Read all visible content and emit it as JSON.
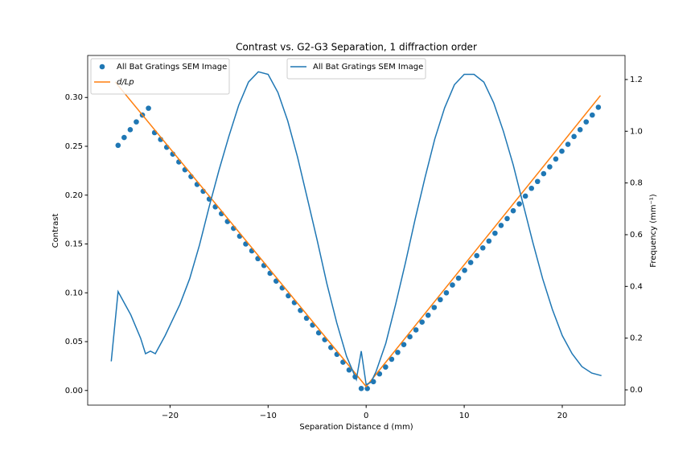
{
  "chart_data": {
    "type": "combo",
    "title": "Contrast vs. G2-G3 Separation, 1 diffraction order",
    "x_label": "Separation Distance d (mm)",
    "y_label": "Contrast",
    "y2_label": "Frequency (mm⁻¹)",
    "xlim": [
      -28.4,
      26.4
    ],
    "ylim": [
      -0.015,
      0.343
    ],
    "y2lim": [
      -0.059,
      1.293
    ],
    "xticks": [
      {
        "value": -20,
        "label": "−20"
      },
      {
        "value": -10,
        "label": "−10"
      },
      0,
      10,
      20
    ],
    "yticks": [
      {
        "value": 0,
        "label": "0.00"
      },
      {
        "value": 0.05,
        "label": "0.05"
      },
      {
        "value": 0.1,
        "label": "0.10"
      },
      {
        "value": 0.15,
        "label": "0.15"
      },
      {
        "value": 0.2,
        "label": "0.20"
      },
      {
        "value": 0.25,
        "label": "0.25"
      },
      {
        "value": 0.3,
        "label": "0.30"
      }
    ],
    "y2ticks": [
      {
        "value": 0,
        "label": "0.0"
      },
      {
        "value": 0.2,
        "label": "0.2"
      },
      {
        "value": 0.4,
        "label": "0.4"
      },
      {
        "value": 0.6,
        "label": "0.6"
      },
      {
        "value": 0.8,
        "label": "0.8"
      },
      {
        "value": 1,
        "label": "1.0"
      },
      {
        "value": 1.2,
        "label": "1.2"
      }
    ],
    "legend": [
      "upper left",
      "upper center"
    ],
    "series": [
      {
        "name": "All Bat Gratings SEM Image",
        "type": "scatter",
        "color": "#1f77b4",
        "x": [
          -25.3,
          -24.68,
          -24.06,
          -23.44,
          -22.82,
          -22.2,
          -21.58,
          -20.96,
          -20.34,
          -19.72,
          -19.1,
          -18.48,
          -17.86,
          -17.24,
          -16.62,
          -16.0,
          -15.38,
          -14.76,
          -14.14,
          -13.52,
          -12.9,
          -12.28,
          -11.66,
          -11.04,
          -10.42,
          -9.8,
          -9.18,
          -8.56,
          -7.94,
          -7.32,
          -6.7,
          -6.08,
          -5.46,
          -4.84,
          -4.22,
          -3.6,
          -2.98,
          -2.36,
          -1.74,
          -1.12,
          -0.5,
          0.12,
          0.74,
          1.36,
          1.98,
          2.6,
          3.22,
          3.84,
          4.46,
          5.08,
          5.7,
          6.32,
          6.94,
          7.56,
          8.18,
          8.8,
          9.42,
          10.04,
          10.66,
          11.28,
          11.9,
          12.52,
          13.14,
          13.76,
          14.38,
          15.0,
          15.62,
          16.24,
          16.86,
          17.48,
          18.1,
          18.72,
          19.34,
          19.96,
          20.58,
          21.2,
          21.82,
          22.44,
          23.06,
          23.68
        ],
        "values": [
          0.251,
          0.259,
          0.267,
          0.275,
          0.282,
          0.289,
          0.264,
          0.257,
          0.249,
          0.242,
          0.234,
          0.226,
          0.219,
          0.211,
          0.204,
          0.196,
          0.188,
          0.181,
          0.173,
          0.166,
          0.158,
          0.15,
          0.143,
          0.135,
          0.128,
          0.12,
          0.112,
          0.105,
          0.097,
          0.09,
          0.082,
          0.074,
          0.067,
          0.059,
          0.052,
          0.044,
          0.037,
          0.029,
          0.021,
          0.014,
          0.002,
          0.002,
          0.009,
          0.017,
          0.024,
          0.032,
          0.039,
          0.047,
          0.055,
          0.062,
          0.07,
          0.077,
          0.085,
          0.093,
          0.1,
          0.108,
          0.115,
          0.123,
          0.131,
          0.138,
          0.146,
          0.153,
          0.161,
          0.169,
          0.176,
          0.184,
          0.191,
          0.199,
          0.207,
          0.214,
          0.222,
          0.229,
          0.237,
          0.245,
          0.252,
          0.26,
          0.267,
          0.275,
          0.282,
          0.29
        ]
      },
      {
        "name": "d/Lp",
        "type": "line",
        "color": "#ff7f0e",
        "x": [
          -25.6,
          0,
          23.9
        ],
        "values": [
          0.316,
          0.004,
          0.302
        ]
      },
      {
        "name": "All Bat Gratings SEM Image",
        "type": "line",
        "color": "#1f77b4",
        "axis": "y2",
        "x": [
          -26,
          -25.3,
          -24,
          -23,
          -22.5,
          -22,
          -21.5,
          -20.5,
          -20,
          -19,
          -18,
          -17,
          -16,
          -15,
          -14,
          -13,
          -12,
          -11,
          -10,
          -9,
          -8,
          -7,
          -6,
          -5,
          -4,
          -3,
          -2,
          -1,
          -0.5,
          0,
          0.5,
          1,
          2,
          3,
          4,
          5,
          6,
          7,
          8,
          9,
          10,
          11,
          12,
          13,
          14,
          15,
          16,
          17,
          18,
          19,
          20,
          21,
          22,
          23,
          24
        ],
        "values": [
          0.11,
          0.38,
          0.29,
          0.2,
          0.14,
          0.15,
          0.14,
          0.21,
          0.25,
          0.33,
          0.43,
          0.56,
          0.71,
          0.85,
          0.98,
          1.1,
          1.19,
          1.23,
          1.22,
          1.15,
          1.04,
          0.9,
          0.74,
          0.58,
          0.41,
          0.26,
          0.13,
          0.04,
          0.15,
          0.02,
          0.03,
          0.07,
          0.18,
          0.33,
          0.49,
          0.66,
          0.82,
          0.97,
          1.09,
          1.18,
          1.22,
          1.22,
          1.19,
          1.11,
          1.0,
          0.87,
          0.72,
          0.57,
          0.43,
          0.31,
          0.21,
          0.14,
          0.09,
          0.065,
          0.055
        ]
      }
    ]
  }
}
